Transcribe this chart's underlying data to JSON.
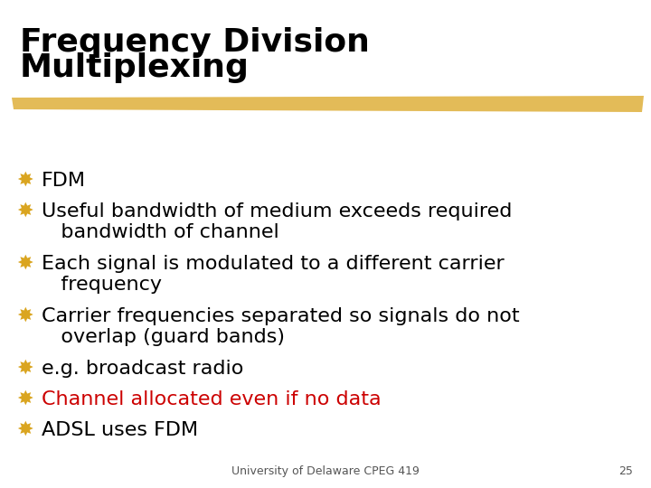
{
  "title_line1": "Frequency Division",
  "title_line2": "Multiplexing",
  "title_fontsize": 26,
  "title_color": "#000000",
  "background_color": "#ffffff",
  "bullet_color": "#DAA520",
  "bullet_fontsize": 16,
  "text_fontsize": 16,
  "highlight_color": "#cc0000",
  "footer_text": "University of Delaware CPEG 419",
  "footer_number": "25",
  "footer_fontsize": 9,
  "footer_color": "#555555",
  "bar_color": "#DAA520",
  "bar_alpha": 0.75,
  "bullets": [
    {
      "text": "FDM",
      "color": "#000000",
      "two_lines": false,
      "line2": ""
    },
    {
      "text": "Useful bandwidth of medium exceeds required",
      "color": "#000000",
      "two_lines": true,
      "line2": "   bandwidth of channel"
    },
    {
      "text": "Each signal is modulated to a different carrier",
      "color": "#000000",
      "two_lines": true,
      "line2": "   frequency"
    },
    {
      "text": "Carrier frequencies separated so signals do not",
      "color": "#000000",
      "two_lines": true,
      "line2": "   overlap (guard bands)"
    },
    {
      "text": "e.g. broadcast radio",
      "color": "#000000",
      "two_lines": false,
      "line2": ""
    },
    {
      "text": "Channel allocated even if no data",
      "color": "#cc0000",
      "two_lines": false,
      "line2": ""
    },
    {
      "text": "ADSL uses FDM",
      "color": "#000000",
      "two_lines": false,
      "line2": ""
    }
  ]
}
